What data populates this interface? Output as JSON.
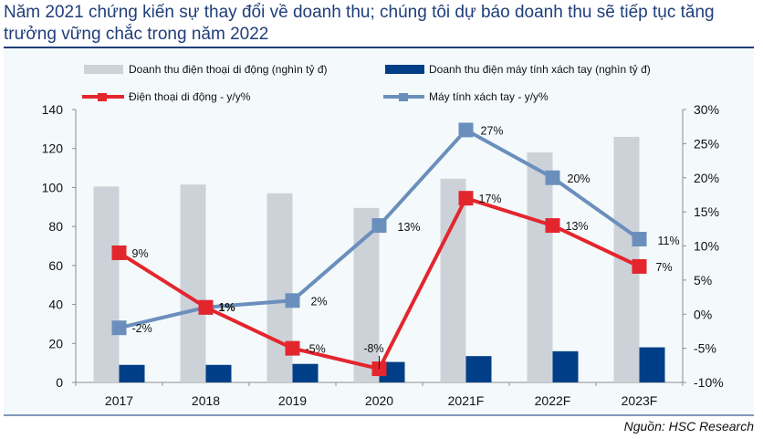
{
  "title": "Năm 2021 chứng kiến sự thay đổi về doanh thu; chúng tôi dự báo doanh thu sẽ tiếp tục tăng trưởng vững chắc trong năm 2022",
  "source": "Nguồn: HSC Research",
  "colors": {
    "phone_revenue": "#cdd2d9",
    "laptop_revenue": "#003f87",
    "phone_yoy": "#e3262e",
    "laptop_yoy": "#6b8fbc",
    "title": "#1f3e7a"
  },
  "chart_data": {
    "type": "bar",
    "title": "Năm 2021 chứng kiến sự thay đổi về doanh thu; chúng tôi dự báo doanh thu sẽ tiếp tục tăng trưởng vững chắc trong năm 2022",
    "categories": [
      "2017",
      "2018",
      "2019",
      "2020",
      "2021F",
      "2022F",
      "2023F"
    ],
    "series": [
      {
        "name": "Doanh thu điện thoại di động (nghìn tỷ đ)",
        "type": "bar",
        "axis": "left",
        "values": [
          100.5,
          101.5,
          97,
          89.5,
          104.5,
          118,
          126
        ]
      },
      {
        "name": "Doanh thu điện máy tính xách tay (nghìn tỷ đ)",
        "type": "bar",
        "axis": "left",
        "values": [
          9,
          9,
          9.5,
          10.5,
          13.5,
          16,
          18
        ]
      },
      {
        "name": "Điện thoại di động - y/y%",
        "type": "line",
        "axis": "right",
        "values": [
          9,
          1,
          -5,
          -8,
          17,
          13,
          7
        ],
        "labels": [
          "9%",
          "1%",
          "-5%",
          "-8%",
          "17%",
          "13%",
          "7%"
        ]
      },
      {
        "name": "Máy tính xách tay - y/y%",
        "type": "line",
        "axis": "right",
        "values": [
          -2,
          1,
          2,
          13,
          27,
          20,
          11
        ],
        "labels": [
          "-2%",
          "",
          "2%",
          "13%",
          "27%",
          "20%",
          "11%"
        ]
      }
    ],
    "left_axis": {
      "ylim": [
        0,
        140
      ],
      "ticks": [
        "0",
        "20",
        "40",
        "60",
        "80",
        "100",
        "120",
        "140"
      ]
    },
    "right_axis": {
      "ylim": [
        -10,
        30
      ],
      "ticks": [
        "-10%",
        "-5%",
        "0%",
        "5%",
        "10%",
        "15%",
        "20%",
        "25%",
        "30%"
      ]
    },
    "xlabel": "",
    "ylabel": "",
    "grid": false,
    "legend_position": "top"
  }
}
